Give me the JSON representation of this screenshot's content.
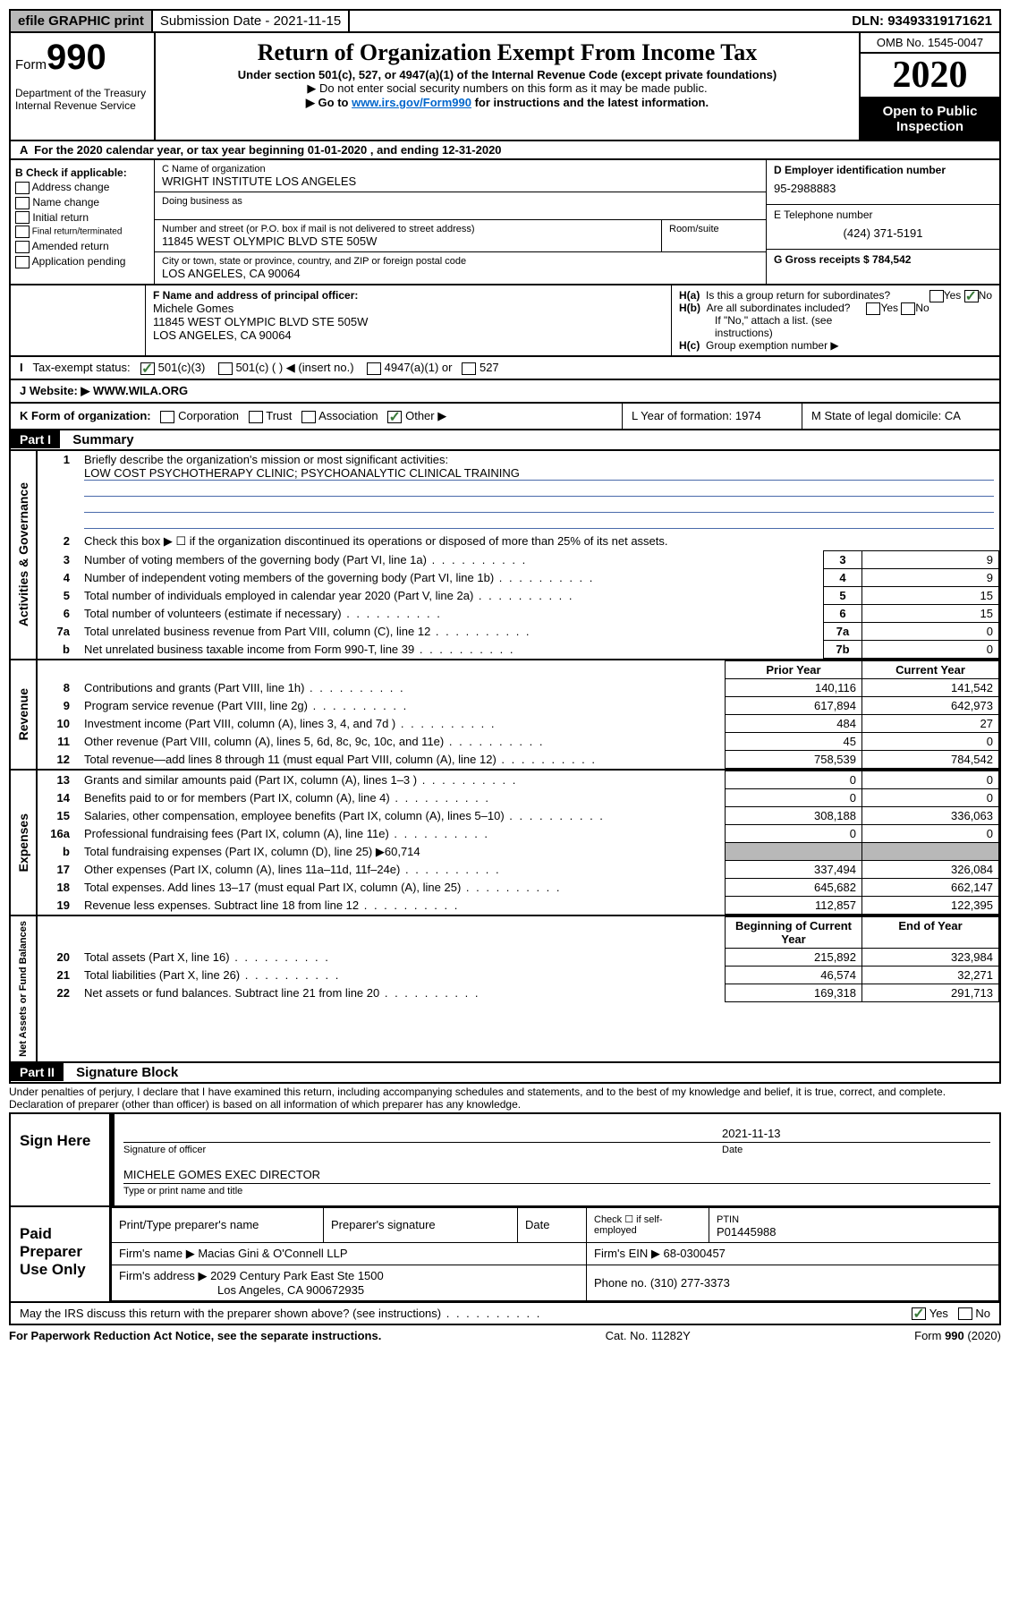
{
  "topbar": {
    "efile": "efile GRAPHIC print",
    "submission": "Submission Date - 2021-11-15",
    "dln": "DLN: 93493319171621"
  },
  "header": {
    "form_label": "Form",
    "form_num": "990",
    "dept": "Department of the Treasury\nInternal Revenue Service",
    "title": "Return of Organization Exempt From Income Tax",
    "subtitle": "Under section 501(c), 527, or 4947(a)(1) of the Internal Revenue Code (except private foundations)",
    "line1": "▶ Do not enter social security numbers on this form as it may be made public.",
    "line2_pre": "▶ Go to ",
    "line2_link": "www.irs.gov/Form990",
    "line2_post": " for instructions and the latest information.",
    "omb": "OMB No. 1545-0047",
    "year": "2020",
    "open": "Open to Public Inspection"
  },
  "row_a": "For the 2020 calendar year, or tax year beginning 01-01-2020   , and ending 12-31-2020",
  "section_b": {
    "header": "B Check if applicable:",
    "items": [
      "Address change",
      "Name change",
      "Initial return",
      "Final return/terminated",
      "Amended return",
      "Application pending"
    ]
  },
  "section_c": {
    "name_label": "C Name of organization",
    "name": "WRIGHT INSTITUTE LOS ANGELES",
    "dba": "Doing business as",
    "addr_label": "Number and street (or P.O. box if mail is not delivered to street address)",
    "room_label": "Room/suite",
    "addr": "11845 WEST OLYMPIC BLVD STE 505W",
    "city_label": "City or town, state or province, country, and ZIP or foreign postal code",
    "city": "LOS ANGELES, CA  90064"
  },
  "section_d": {
    "ein_label": "D Employer identification number",
    "ein": "95-2988883",
    "phone_label": "E Telephone number",
    "phone": "(424) 371-5191",
    "gross_label": "G Gross receipts $ 784,542"
  },
  "section_f": {
    "label": "F  Name and address of principal officer:",
    "name": "Michele Gomes",
    "addr": "11845 WEST OLYMPIC BLVD STE 505W",
    "city": "LOS ANGELES, CA  90064"
  },
  "section_h": {
    "a": "Is this a group return for subordinates?",
    "b": "Are all subordinates included?",
    "note": "If \"No,\" attach a list. (see instructions)",
    "c": "Group exemption number ▶"
  },
  "tax_status": {
    "label": "Tax-exempt status:",
    "opts": [
      "501(c)(3)",
      "501(c) (  ) ◀ (insert no.)",
      "4947(a)(1) or",
      "527"
    ]
  },
  "website": {
    "label": "J   Website: ▶",
    "value": "  WWW.WILA.ORG"
  },
  "row_k": {
    "k": "K Form of organization:",
    "opts": [
      "Corporation",
      "Trust",
      "Association",
      "Other ▶"
    ],
    "l": "L Year of formation: 1974",
    "m": "M State of legal domicile: CA"
  },
  "part1": {
    "header": "Part I",
    "title": "Summary",
    "q1": "Briefly describe the organization's mission or most significant activities:",
    "q1_ans": "LOW COST PSYCHOTHERAPY CLINIC; PSYCHOANALYTIC CLINICAL TRAINING",
    "q2": "Check this box ▶ ☐  if the organization discontinued its operations or disposed of more than 25% of its net assets.",
    "lines_gov": [
      {
        "n": "3",
        "t": "Number of voting members of the governing body (Part VI, line 1a)",
        "b": "3",
        "v": "9"
      },
      {
        "n": "4",
        "t": "Number of independent voting members of the governing body (Part VI, line 1b)",
        "b": "4",
        "v": "9"
      },
      {
        "n": "5",
        "t": "Total number of individuals employed in calendar year 2020 (Part V, line 2a)",
        "b": "5",
        "v": "15"
      },
      {
        "n": "6",
        "t": "Total number of volunteers (estimate if necessary)",
        "b": "6",
        "v": "15"
      },
      {
        "n": "7a",
        "t": "Total unrelated business revenue from Part VIII, column (C), line 12",
        "b": "7a",
        "v": "0"
      },
      {
        "n": "b",
        "t": "Net unrelated business taxable income from Form 990-T, line 39",
        "b": "7b",
        "v": "0"
      }
    ],
    "col_prior": "Prior Year",
    "col_current": "Current Year",
    "lines_rev": [
      {
        "n": "8",
        "t": "Contributions and grants (Part VIII, line 1h)",
        "p": "140,116",
        "c": "141,542"
      },
      {
        "n": "9",
        "t": "Program service revenue (Part VIII, line 2g)",
        "p": "617,894",
        "c": "642,973"
      },
      {
        "n": "10",
        "t": "Investment income (Part VIII, column (A), lines 3, 4, and 7d )",
        "p": "484",
        "c": "27"
      },
      {
        "n": "11",
        "t": "Other revenue (Part VIII, column (A), lines 5, 6d, 8c, 9c, 10c, and 11e)",
        "p": "45",
        "c": "0"
      },
      {
        "n": "12",
        "t": "Total revenue—add lines 8 through 11 (must equal Part VIII, column (A), line 12)",
        "p": "758,539",
        "c": "784,542"
      }
    ],
    "lines_exp": [
      {
        "n": "13",
        "t": "Grants and similar amounts paid (Part IX, column (A), lines 1–3 )",
        "p": "0",
        "c": "0"
      },
      {
        "n": "14",
        "t": "Benefits paid to or for members (Part IX, column (A), line 4)",
        "p": "0",
        "c": "0"
      },
      {
        "n": "15",
        "t": "Salaries, other compensation, employee benefits (Part IX, column (A), lines 5–10)",
        "p": "308,188",
        "c": "336,063"
      },
      {
        "n": "16a",
        "t": "Professional fundraising fees (Part IX, column (A), line 11e)",
        "p": "0",
        "c": "0"
      },
      {
        "n": "b",
        "t": "Total fundraising expenses (Part IX, column (D), line 25) ▶60,714",
        "p": "grey",
        "c": "grey"
      },
      {
        "n": "17",
        "t": "Other expenses (Part IX, column (A), lines 11a–11d, 11f–24e)",
        "p": "337,494",
        "c": "326,084"
      },
      {
        "n": "18",
        "t": "Total expenses. Add lines 13–17 (must equal Part IX, column (A), line 25)",
        "p": "645,682",
        "c": "662,147"
      },
      {
        "n": "19",
        "t": "Revenue less expenses. Subtract line 18 from line 12",
        "p": "112,857",
        "c": "122,395"
      }
    ],
    "col_begin": "Beginning of Current Year",
    "col_end": "End of Year",
    "lines_net": [
      {
        "n": "20",
        "t": "Total assets (Part X, line 16)",
        "p": "215,892",
        "c": "323,984"
      },
      {
        "n": "21",
        "t": "Total liabilities (Part X, line 26)",
        "p": "46,574",
        "c": "32,271"
      },
      {
        "n": "22",
        "t": "Net assets or fund balances. Subtract line 21 from line 20",
        "p": "169,318",
        "c": "291,713"
      }
    ]
  },
  "part2": {
    "header": "Part II",
    "title": "Signature Block",
    "perjury": "Under penalties of perjury, I declare that I have examined this return, including accompanying schedules and statements, and to the best of my knowledge and belief, it is true, correct, and complete. Declaration of preparer (other than officer) is based on all information of which preparer has any knowledge."
  },
  "sign": {
    "label": "Sign Here",
    "sig_label": "Signature of officer",
    "date_label": "Date",
    "date": "2021-11-13",
    "name": "MICHELE GOMES  EXEC DIRECTOR",
    "name_label": "Type or print name and title"
  },
  "preparer": {
    "label": "Paid Preparer Use Only",
    "col1": "Print/Type preparer's name",
    "col2": "Preparer's signature",
    "col3": "Date",
    "col4_a": "Check ☐ if self-employed",
    "col5": "PTIN",
    "ptin": "P01445988",
    "firm_label": "Firm's name    ▶",
    "firm": "Macias Gini & O'Connell LLP",
    "ein_label": "Firm's EIN ▶",
    "ein": "68-0300457",
    "addr_label": "Firm's address ▶",
    "addr1": "2029 Century Park East Ste 1500",
    "addr2": "Los Angeles, CA  900672935",
    "phone_label": "Phone no.",
    "phone": "(310) 277-3373"
  },
  "footer": {
    "discuss": "May the IRS discuss this return with the preparer shown above? (see instructions)",
    "paperwork": "For Paperwork Reduction Act Notice, see the separate instructions.",
    "cat": "Cat. No. 11282Y",
    "form": "Form 990 (2020)"
  },
  "labels": {
    "gov": "Activities & Governance",
    "rev": "Revenue",
    "exp": "Expenses",
    "net": "Net Assets or Fund Balances"
  }
}
